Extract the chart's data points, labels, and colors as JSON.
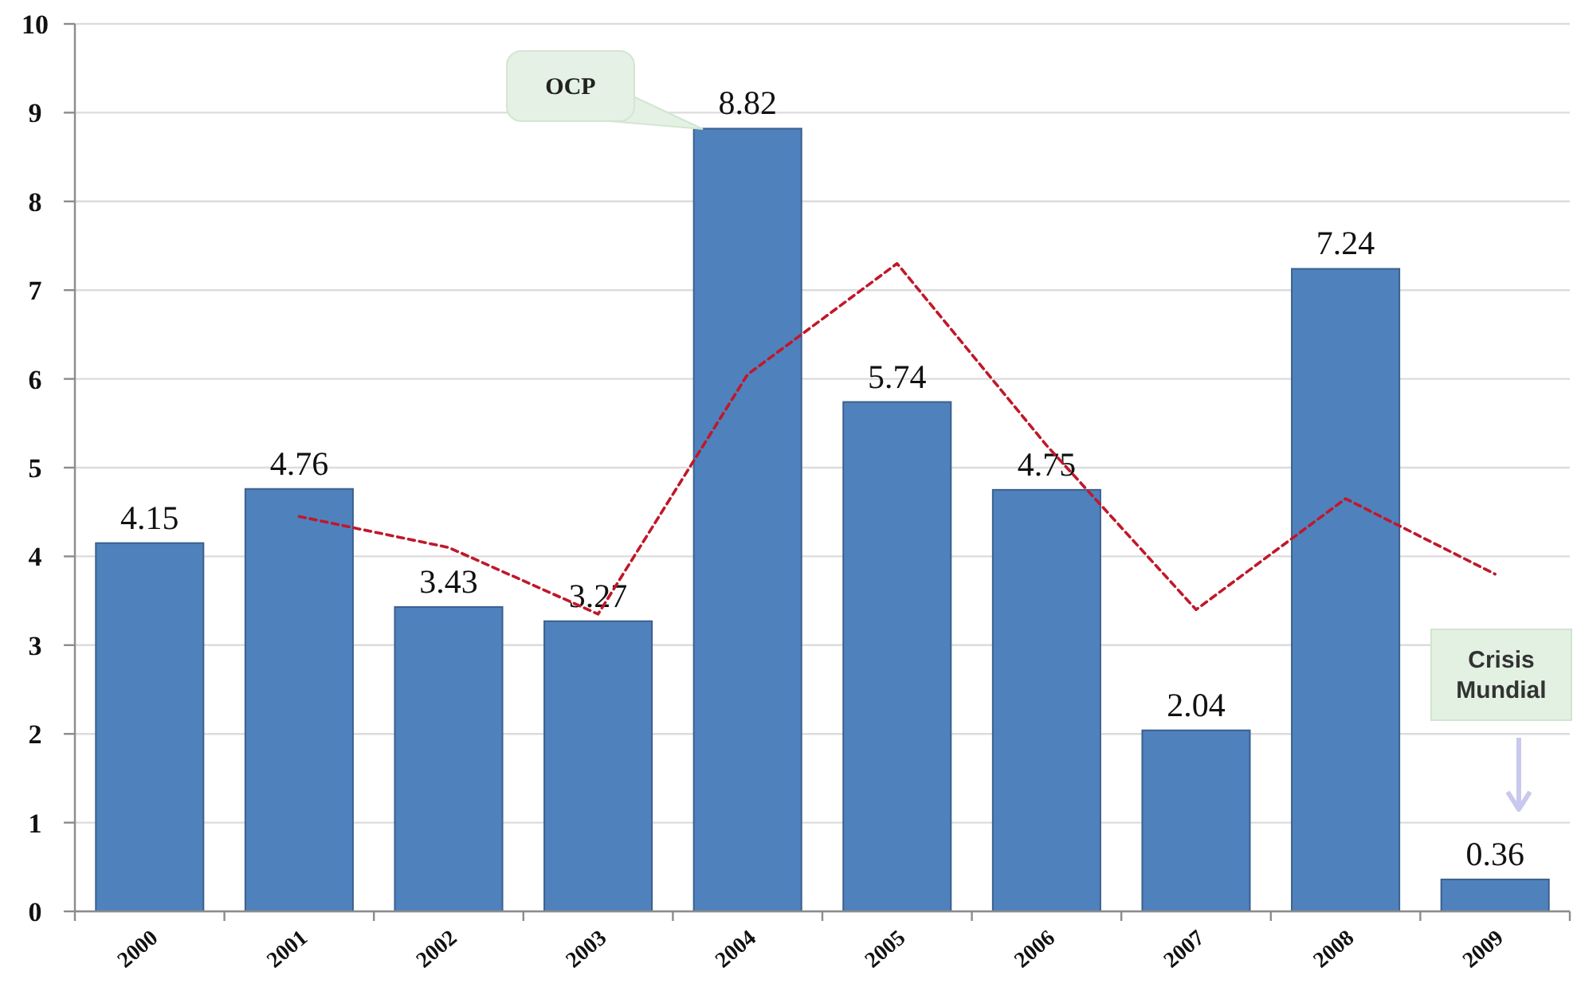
{
  "chart_data": {
    "type": "bar",
    "categories": [
      "2000",
      "2001",
      "2002",
      "2003",
      "2004",
      "2005",
      "2006",
      "2007",
      "2008",
      "2009"
    ],
    "series": [
      {
        "color": "#4f81bd",
        "values": [
          4.15,
          4.76,
          3.43,
          3.27,
          8.82,
          5.74,
          4.75,
          2.04,
          7.24,
          0.36
        ],
        "value_labels": [
          "4.15",
          "4.76",
          "3.43",
          "3.27",
          "8.82",
          "5.74",
          "4.75",
          "2.04",
          "7.24",
          "0.36"
        ]
      },
      {
        "type": "line",
        "color": "#c0182a",
        "values": [
          null,
          4.45,
          4.1,
          3.35,
          6.05,
          7.3,
          5.25,
          3.4,
          4.65,
          3.8
        ],
        "line_style": "dashed"
      }
    ],
    "ylim": [
      0,
      10
    ],
    "yticks": [
      0,
      1,
      2,
      3,
      4,
      5,
      6,
      7,
      8,
      9,
      10
    ],
    "grid": "y",
    "annotations": [
      "OCP",
      "Crisis Mundial"
    ]
  }
}
